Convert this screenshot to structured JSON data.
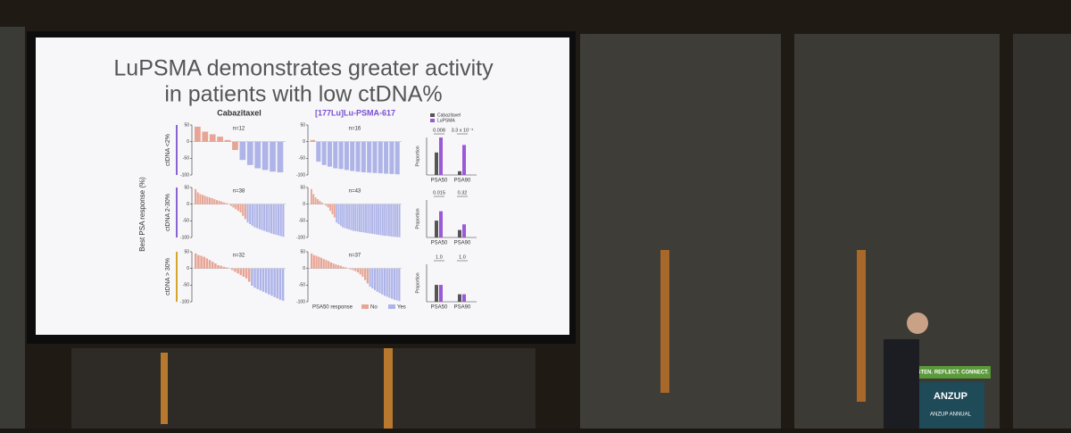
{
  "slide": {
    "title": [
      "LuPSMA demonstrates greater activity",
      "in patients with low ctDNA%"
    ],
    "columns": [
      "Cabazitaxel",
      "[177Lu]Lu-PSMA-617"
    ],
    "y_label": "Best PSA response (%)",
    "rows": [
      "ctDNA <2%",
      "ctDNA 2-30%",
      "ctDNA > 30%"
    ],
    "legend_title": "PSA50 response",
    "response_legend": [
      {
        "name": "No",
        "color": "#e8a595"
      },
      {
        "name": "Yes",
        "color": "#aeb4e8"
      }
    ],
    "waterfall": {
      "ylim": [
        -100,
        50
      ],
      "yticks": [
        50,
        0,
        -50,
        -100
      ],
      "yes_below": -50,
      "panels": [
        {
          "n": "n=12",
          "values": [
            45,
            30,
            22,
            15,
            5,
            -25,
            -55,
            -70,
            -80,
            -85,
            -90,
            -92
          ]
        },
        {
          "n": "n=16",
          "values": [
            5,
            -60,
            -70,
            -75,
            -80,
            -82,
            -85,
            -88,
            -90,
            -92,
            -93,
            -94,
            -95,
            -96,
            -97,
            -98
          ]
        },
        {
          "n": "n=38",
          "values": [
            45,
            35,
            30,
            28,
            25,
            22,
            20,
            18,
            15,
            12,
            10,
            8,
            5,
            3,
            0,
            -5,
            -10,
            -15,
            -20,
            -25,
            -35,
            -45,
            -55,
            -60,
            -65,
            -70,
            -72,
            -75,
            -78,
            -80,
            -83,
            -85,
            -88,
            -90,
            -92,
            -94,
            -96,
            -98
          ]
        },
        {
          "n": "n=43",
          "values": [
            45,
            30,
            20,
            15,
            10,
            5,
            0,
            -5,
            -10,
            -20,
            -30,
            -40,
            -55,
            -60,
            -65,
            -70,
            -72,
            -74,
            -76,
            -78,
            -80,
            -81,
            -82,
            -83,
            -84,
            -85,
            -86,
            -87,
            -88,
            -89,
            -90,
            -91,
            -92,
            -93,
            -94,
            -95,
            -95,
            -96,
            -97,
            -98,
            -98,
            -99,
            -99
          ]
        },
        {
          "n": "n=32",
          "values": [
            45,
            40,
            38,
            35,
            30,
            25,
            20,
            15,
            10,
            8,
            5,
            3,
            0,
            -5,
            -10,
            -15,
            -20,
            -25,
            -30,
            -40,
            -52,
            -58,
            -62,
            -66,
            -70,
            -74,
            -78,
            -82,
            -86,
            -90,
            -94,
            -97
          ]
        },
        {
          "n": "n=37",
          "values": [
            45,
            40,
            38,
            35,
            32,
            28,
            25,
            22,
            18,
            15,
            12,
            10,
            8,
            5,
            3,
            0,
            -3,
            -5,
            -8,
            -12,
            -18,
            -25,
            -35,
            -45,
            -55,
            -60,
            -65,
            -70,
            -74,
            -78,
            -82,
            -85,
            -88,
            -91,
            -94,
            -96,
            -98
          ]
        }
      ]
    },
    "proportion": {
      "y_label": "Proportion",
      "ylim": [
        0,
        1
      ],
      "categories": [
        "PSA50",
        "PSA90"
      ],
      "series": [
        {
          "name": "Cabazitaxel",
          "color": "#555555"
        },
        {
          "name": "LuPSMA",
          "color": "#9b59d8"
        }
      ],
      "panels": [
        {
          "values": [
            [
              0.6,
              1.0
            ],
            [
              0.1,
              0.8
            ]
          ],
          "p": [
            "0.008",
            "3.3 x 10⁻⁴"
          ]
        },
        {
          "values": [
            [
              0.45,
              0.7
            ],
            [
              0.2,
              0.35
            ]
          ],
          "p": [
            "0.015",
            "0.32"
          ]
        },
        {
          "values": [
            [
              0.45,
              0.45
            ],
            [
              0.2,
              0.2
            ]
          ],
          "p": [
            "1.0",
            "1.0"
          ]
        }
      ]
    }
  },
  "podium": {
    "banner": "LISTEN. REFLECT. CONNECT.",
    "logo": "ANZUP",
    "caption": "ANZUP ANNUAL"
  }
}
